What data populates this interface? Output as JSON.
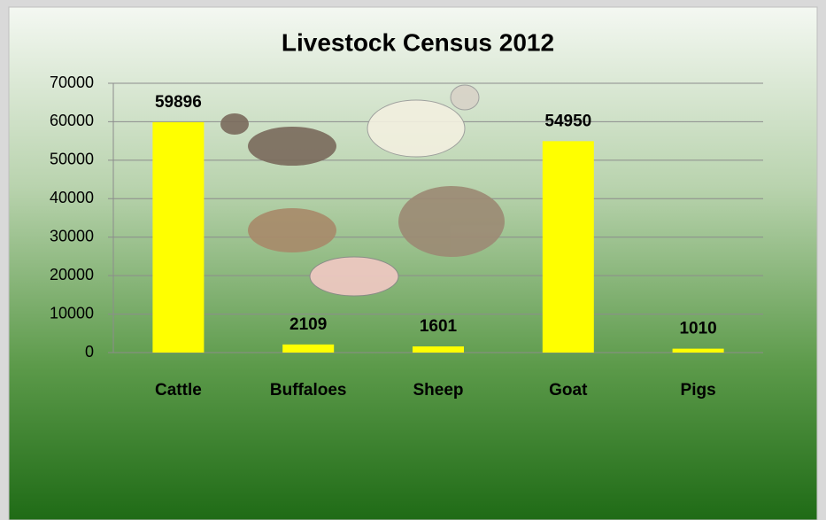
{
  "chart_data": {
    "type": "bar",
    "title": "Livestock Census 2012",
    "categories": [
      "Cattle",
      "Buffaloes",
      "Sheep",
      "Goat",
      "Pigs"
    ],
    "values": [
      59896,
      2109,
      1601,
      54950,
      1010
    ],
    "color": "#ffff00",
    "ylim": [
      0,
      70000
    ],
    "yticks": [
      0,
      10000,
      20000,
      30000,
      40000,
      50000,
      60000,
      70000
    ],
    "grid": true
  }
}
